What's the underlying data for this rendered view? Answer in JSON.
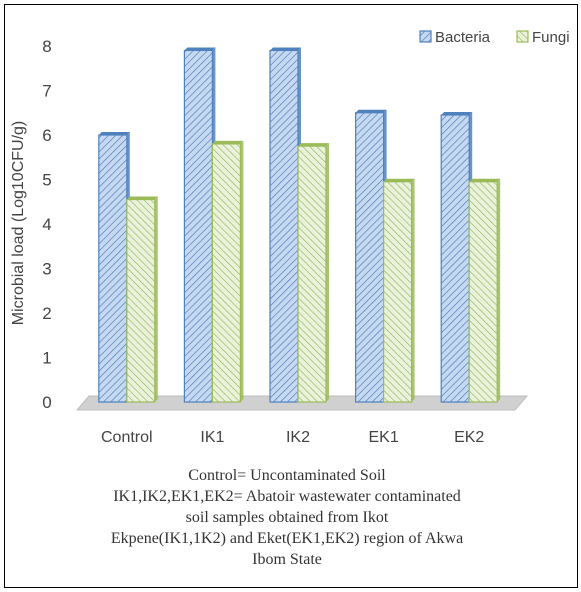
{
  "chart_data": {
    "type": "bar",
    "title": "",
    "xlabel": "",
    "ylabel": "Microbial load (Log10CFU/g)",
    "ylim": [
      0,
      8
    ],
    "yticks": [
      0,
      1,
      2,
      3,
      4,
      5,
      6,
      7,
      8
    ],
    "categories": [
      "Control",
      "IK1",
      "IK2",
      "EK1",
      "EK2"
    ],
    "series": [
      {
        "name": "Bacteria",
        "values": [
          6.0,
          7.9,
          7.9,
          6.5,
          6.45
        ],
        "color": "#4f81bd",
        "fill": "#c6d9f1"
      },
      {
        "name": "Fungi",
        "values": [
          4.55,
          5.8,
          5.75,
          4.95,
          4.95
        ],
        "color": "#9bbb59",
        "fill": "#eaf1dd"
      }
    ],
    "grid": false,
    "legend": "top-right"
  },
  "caption": {
    "lines": [
      "Control=                 Uncontaminated Soil",
      "IK1,IK2,EK1,EK2= Abatoir wastewater contaminated",
      "soil samples         obtained from        Ikot",
      "Ekpene(IK1,1K2) and Eket(EK1,EK2) region of Akwa",
      "Ibom State"
    ]
  }
}
